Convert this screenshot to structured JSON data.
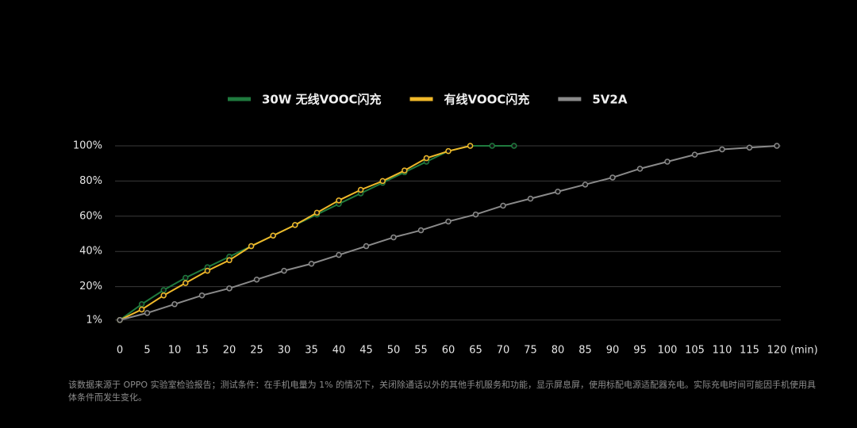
{
  "chart_data": {
    "type": "line",
    "x_label": "(min)",
    "xlim": [
      0,
      120
    ],
    "xticks": [
      0,
      5,
      10,
      15,
      20,
      25,
      30,
      35,
      40,
      45,
      50,
      55,
      60,
      65,
      70,
      75,
      80,
      85,
      90,
      95,
      100,
      105,
      110,
      115,
      120
    ],
    "ylim": [
      0,
      100
    ],
    "yticks": [
      {
        "value": 1,
        "label": "1%"
      },
      {
        "value": 20,
        "label": "20%"
      },
      {
        "value": 40,
        "label": "40%"
      },
      {
        "value": 60,
        "label": "60%"
      },
      {
        "value": 80,
        "label": "80%"
      },
      {
        "value": 100,
        "label": "100%"
      }
    ],
    "grid": true,
    "legend": "top",
    "series": [
      {
        "name": "30W 无线VOOC闪充",
        "color": "#1f7a3e",
        "x": [
          0,
          4,
          8,
          12,
          16,
          20,
          24,
          28,
          32,
          36,
          40,
          44,
          48,
          52,
          56,
          60,
          64,
          68,
          72
        ],
        "values": [
          1,
          10,
          18,
          25,
          31,
          37,
          43,
          49,
          55,
          61,
          67,
          73,
          79,
          85,
          91,
          97,
          100,
          100,
          100
        ]
      },
      {
        "name": "有线VOOC闪充",
        "color": "#f0b92a",
        "x": [
          0,
          4,
          8,
          12,
          16,
          20,
          24,
          28,
          32,
          36,
          40,
          44,
          48,
          52,
          56,
          60,
          64
        ],
        "values": [
          1,
          7,
          15,
          22,
          29,
          35,
          43,
          49,
          55,
          62,
          69,
          75,
          80,
          86,
          93,
          97,
          100
        ]
      },
      {
        "name": "5V2A",
        "color": "#8a8a8a",
        "x": [
          0,
          5,
          10,
          15,
          20,
          25,
          30,
          35,
          40,
          45,
          50,
          55,
          60,
          65,
          70,
          75,
          80,
          85,
          90,
          95,
          100,
          105,
          110,
          115,
          120
        ],
        "values": [
          1,
          5,
          10,
          15,
          19,
          24,
          29,
          33,
          38,
          43,
          48,
          52,
          57,
          61,
          66,
          70,
          74,
          78,
          82,
          87,
          91,
          95,
          98,
          99,
          100
        ]
      }
    ],
    "footnote": "该数据来源于 OPPO 实验室检验报告；测试条件：在手机电量为 1% 的情况下，关闭除通话以外的其他手机服务和功能，显示屏息屏，使用标配电源适配器充电。实际充电时间可能因手机使用具体条件而发生变化。"
  }
}
